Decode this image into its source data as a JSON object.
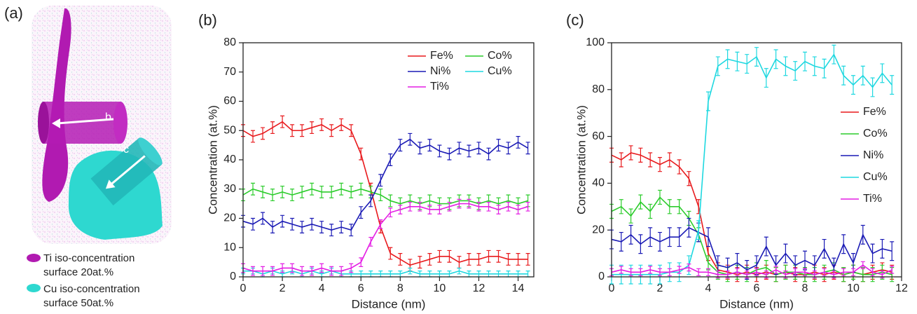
{
  "panel_a": {
    "label": "(a)",
    "arrows": [
      "b",
      "c"
    ],
    "legend": [
      {
        "lines": [
          "Ti iso-concentration",
          "surface 20at.%"
        ]
      },
      {
        "lines": [
          "Cu iso-concentration",
          "surface 50at.%"
        ]
      }
    ]
  },
  "chart_data": [
    {
      "type": "line",
      "panel_label": "(b)",
      "x_label": "Distance (nm)",
      "y_label": "Concentration (at.%)",
      "x": [
        0,
        0.5,
        1,
        1.5,
        2,
        2.5,
        3,
        3.5,
        4,
        4.5,
        5,
        5.5,
        6,
        6.5,
        7,
        7.5,
        8,
        8.5,
        9,
        9.5,
        10,
        10.5,
        11,
        11.5,
        12,
        12.5,
        13,
        13.5,
        14,
        14.5
      ],
      "xlim": [
        0,
        14.8
      ],
      "xticks": [
        0,
        2,
        4,
        6,
        8,
        10,
        12,
        14
      ],
      "ylim": [
        0,
        80
      ],
      "yticks": [
        0,
        10,
        20,
        30,
        40,
        50,
        60,
        70,
        80
      ],
      "series": [
        {
          "name": "Fe%",
          "color": "#e8191c",
          "error": 2,
          "values": [
            50,
            48,
            49,
            51,
            53,
            50,
            50,
            51,
            52,
            50,
            52,
            50,
            42,
            30,
            17,
            8,
            6,
            4,
            5,
            6,
            7,
            7,
            5,
            6,
            6,
            7,
            7,
            6,
            6,
            6
          ]
        },
        {
          "name": "Co%",
          "color": "#2ccc2c",
          "error": 2,
          "values": [
            28,
            30,
            29,
            28,
            29,
            28,
            29,
            30,
            29,
            29,
            30,
            29,
            30,
            29,
            28,
            26,
            25,
            26,
            25,
            26,
            25,
            25,
            26,
            26,
            25,
            26,
            25,
            26,
            25,
            26
          ]
        },
        {
          "name": "Ni%",
          "color": "#1a1ab5",
          "error": 2,
          "values": [
            19,
            18,
            20,
            17,
            19,
            18,
            17,
            18,
            17,
            16,
            17,
            16,
            22,
            26,
            33,
            40,
            45,
            47,
            44,
            45,
            43,
            42,
            44,
            43,
            44,
            42,
            45,
            44,
            46,
            44
          ]
        },
        {
          "name": "Cu%",
          "color": "#1ed8e0",
          "error": 1,
          "values": [
            2,
            2,
            1,
            2,
            1,
            2,
            1,
            2,
            1,
            2,
            1,
            1,
            1,
            1,
            1,
            1,
            1,
            2,
            1,
            1,
            1,
            1,
            2,
            1,
            1,
            1,
            1,
            1,
            1,
            1
          ]
        },
        {
          "name": "Ti%",
          "color": "#e41ee4",
          "error": 1.5,
          "values": [
            3,
            2,
            2,
            2,
            3,
            3,
            2,
            2,
            3,
            2,
            2,
            3,
            5,
            12,
            18,
            22,
            23,
            24,
            24,
            23,
            23,
            24,
            25,
            25,
            24,
            24,
            23,
            24,
            23,
            24
          ]
        }
      ]
    },
    {
      "type": "line",
      "panel_label": "(c)",
      "x_label": "Distance (nm)",
      "y_label": "Concentration (at.%)",
      "x": [
        0,
        0.4,
        0.8,
        1.2,
        1.6,
        2,
        2.4,
        2.8,
        3.2,
        3.6,
        4,
        4.4,
        4.8,
        5.2,
        5.6,
        6,
        6.4,
        6.8,
        7.2,
        7.6,
        8,
        8.4,
        8.8,
        9.2,
        9.6,
        10,
        10.4,
        10.8,
        11.2,
        11.6
      ],
      "xlim": [
        0,
        12
      ],
      "xticks": [
        0,
        2,
        4,
        6,
        8,
        10,
        12
      ],
      "ylim": [
        0,
        100
      ],
      "yticks": [
        0,
        20,
        40,
        60,
        80,
        100
      ],
      "series": [
        {
          "name": "Fe%",
          "color": "#e8191c",
          "error": 3,
          "values": [
            52,
            50,
            53,
            52,
            50,
            48,
            50,
            47,
            42,
            30,
            10,
            3,
            2,
            1,
            2,
            1,
            2,
            1,
            2,
            1,
            1,
            2,
            1,
            2,
            1,
            2,
            1,
            2,
            3,
            2
          ]
        },
        {
          "name": "Co%",
          "color": "#2ccc2c",
          "error": 3,
          "values": [
            28,
            30,
            26,
            32,
            28,
            34,
            30,
            30,
            25,
            18,
            6,
            2,
            1,
            2,
            1,
            3,
            4,
            1,
            2,
            2,
            1,
            1,
            2,
            3,
            1,
            2,
            1,
            1,
            2,
            1
          ]
        },
        {
          "name": "Ni%",
          "color": "#1a1ab5",
          "error": 4,
          "values": [
            16,
            15,
            18,
            14,
            17,
            15,
            17,
            17,
            21,
            19,
            17,
            5,
            4,
            6,
            3,
            5,
            13,
            5,
            10,
            5,
            7,
            5,
            12,
            4,
            14,
            6,
            18,
            10,
            12,
            11
          ]
        },
        {
          "name": "Cu%",
          "color": "#1ed8e0",
          "error": 4,
          "values": [
            1,
            1,
            1,
            1,
            1,
            1,
            2,
            2,
            5,
            20,
            75,
            90,
            93,
            92,
            91,
            94,
            85,
            93,
            90,
            88,
            92,
            90,
            89,
            95,
            86,
            82,
            86,
            81,
            87,
            82
          ]
        },
        {
          "name": "Ti%",
          "color": "#e41ee4",
          "error": 1.5,
          "values": [
            2,
            3,
            2,
            2,
            3,
            2,
            2,
            3,
            4,
            2,
            2,
            1,
            1,
            2,
            1,
            2,
            1,
            3,
            1,
            2,
            2,
            1,
            2,
            1,
            2,
            2,
            5,
            2,
            1,
            3
          ]
        }
      ]
    }
  ]
}
